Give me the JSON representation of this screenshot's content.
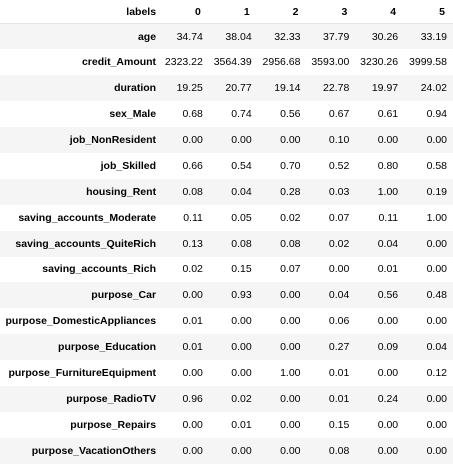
{
  "table": {
    "index_header": "labels",
    "columns": [
      "0",
      "1",
      "2",
      "3",
      "4",
      "5"
    ],
    "rows": [
      {
        "label": "age",
        "values": [
          "34.74",
          "38.04",
          "32.33",
          "37.79",
          "30.26",
          "33.19"
        ]
      },
      {
        "label": "credit_Amount",
        "values": [
          "2323.22",
          "3564.39",
          "2956.68",
          "3593.00",
          "3230.26",
          "3999.58"
        ]
      },
      {
        "label": "duration",
        "values": [
          "19.25",
          "20.77",
          "19.14",
          "22.78",
          "19.97",
          "24.02"
        ]
      },
      {
        "label": "sex_Male",
        "values": [
          "0.68",
          "0.74",
          "0.56",
          "0.67",
          "0.61",
          "0.94"
        ]
      },
      {
        "label": "job_NonResident",
        "values": [
          "0.00",
          "0.00",
          "0.00",
          "0.10",
          "0.00",
          "0.00"
        ]
      },
      {
        "label": "job_Skilled",
        "values": [
          "0.66",
          "0.54",
          "0.70",
          "0.52",
          "0.80",
          "0.58"
        ]
      },
      {
        "label": "housing_Rent",
        "values": [
          "0.08",
          "0.04",
          "0.28",
          "0.03",
          "1.00",
          "0.19"
        ]
      },
      {
        "label": "saving_accounts_Moderate",
        "values": [
          "0.11",
          "0.05",
          "0.02",
          "0.07",
          "0.11",
          "1.00"
        ]
      },
      {
        "label": "saving_accounts_QuiteRich",
        "values": [
          "0.13",
          "0.08",
          "0.08",
          "0.02",
          "0.04",
          "0.00"
        ]
      },
      {
        "label": "saving_accounts_Rich",
        "values": [
          "0.02",
          "0.15",
          "0.07",
          "0.00",
          "0.01",
          "0.00"
        ]
      },
      {
        "label": "purpose_Car",
        "values": [
          "0.00",
          "0.93",
          "0.00",
          "0.04",
          "0.56",
          "0.48"
        ]
      },
      {
        "label": "purpose_DomesticAppliances",
        "values": [
          "0.01",
          "0.00",
          "0.00",
          "0.06",
          "0.00",
          "0.00"
        ]
      },
      {
        "label": "purpose_Education",
        "values": [
          "0.01",
          "0.00",
          "0.00",
          "0.27",
          "0.09",
          "0.04"
        ]
      },
      {
        "label": "purpose_FurnitureEquipment",
        "values": [
          "0.00",
          "0.00",
          "1.00",
          "0.01",
          "0.00",
          "0.12"
        ]
      },
      {
        "label": "purpose_RadioTV",
        "values": [
          "0.96",
          "0.02",
          "0.00",
          "0.01",
          "0.24",
          "0.00"
        ]
      },
      {
        "label": "purpose_Repairs",
        "values": [
          "0.00",
          "0.01",
          "0.00",
          "0.15",
          "0.00",
          "0.00"
        ]
      },
      {
        "label": "purpose_VacationOthers",
        "values": [
          "0.00",
          "0.00",
          "0.00",
          "0.08",
          "0.00",
          "0.00"
        ]
      }
    ]
  }
}
